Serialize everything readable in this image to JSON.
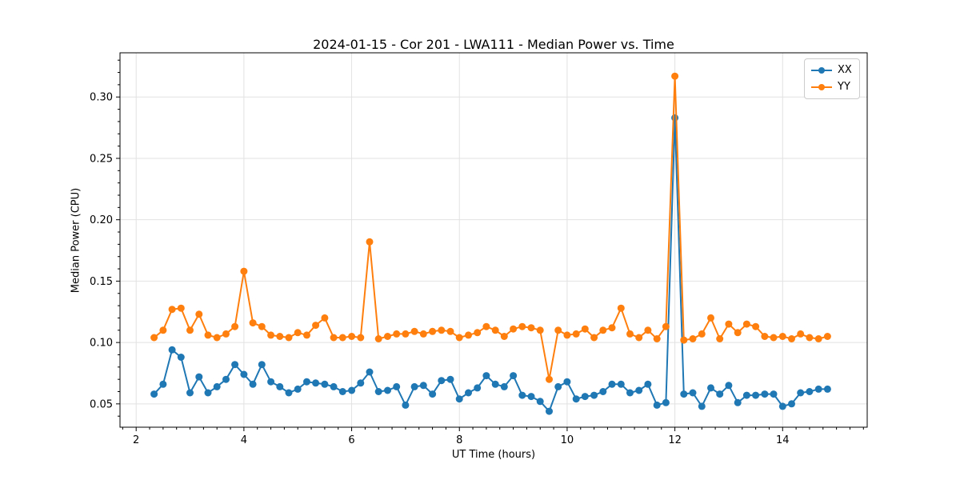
{
  "figure": {
    "background": "#ffffff",
    "text_color": "#000000",
    "spine_color": "#000000",
    "grid_color": "#e2e2e2",
    "legend_border_color": "#cccccc"
  },
  "chart_data": {
    "type": "line",
    "title": "2024-01-15 - Cor 201 - LWA111 - Median Power vs. Time",
    "xlabel": "UT Time (hours)",
    "ylabel": "Median Power (CPU)",
    "xlim": [
      1.7,
      15.57
    ],
    "ylim": [
      0.031,
      0.336
    ],
    "x_major_ticks": [
      2,
      4,
      6,
      8,
      10,
      12,
      14
    ],
    "x_minor_step": 0.25,
    "y_major_ticks": [
      0.05,
      0.1,
      0.15,
      0.2,
      0.25,
      0.3
    ],
    "y_minor_step": 0.01,
    "grid": "major-only",
    "legend_position": "upper right",
    "marker": "circle",
    "x": [
      2.333,
      2.5,
      2.667,
      2.833,
      3,
      3.167,
      3.333,
      3.5,
      3.667,
      3.833,
      4,
      4.167,
      4.333,
      4.5,
      4.667,
      4.833,
      5,
      5.167,
      5.333,
      5.5,
      5.667,
      5.833,
      6,
      6.167,
      6.333,
      6.5,
      6.667,
      6.833,
      7,
      7.167,
      7.333,
      7.5,
      7.667,
      7.833,
      8,
      8.167,
      8.333,
      8.5,
      8.667,
      8.833,
      9,
      9.167,
      9.333,
      9.5,
      9.667,
      9.833,
      10,
      10.167,
      10.333,
      10.5,
      10.667,
      10.833,
      11,
      11.167,
      11.333,
      11.5,
      11.667,
      11.833,
      12,
      12.167,
      12.333,
      12.5,
      12.667,
      12.833,
      13,
      13.167,
      13.333,
      13.5,
      13.667,
      13.833,
      14,
      14.167,
      14.333,
      14.5,
      14.667,
      14.833
    ],
    "series": [
      {
        "name": "XX",
        "color": "#1f77b4",
        "values": [
          0.058,
          0.066,
          0.094,
          0.088,
          0.059,
          0.072,
          0.059,
          0.064,
          0.07,
          0.082,
          0.074,
          0.066,
          0.082,
          0.068,
          0.064,
          0.059,
          0.062,
          0.068,
          0.067,
          0.066,
          0.064,
          0.06,
          0.061,
          0.067,
          0.076,
          0.06,
          0.061,
          0.064,
          0.049,
          0.064,
          0.065,
          0.058,
          0.069,
          0.07,
          0.054,
          0.059,
          0.063,
          0.073,
          0.066,
          0.064,
          0.073,
          0.057,
          0.056,
          0.052,
          0.044,
          0.064,
          0.068,
          0.054,
          0.056,
          0.057,
          0.06,
          0.066,
          0.066,
          0.059,
          0.061,
          0.066,
          0.049,
          0.051,
          0.283,
          0.058,
          0.059,
          0.048,
          0.063,
          0.058,
          0.065,
          0.051,
          0.057,
          0.057,
          0.058,
          0.058,
          0.048,
          0.05,
          0.059,
          0.06,
          0.062,
          0.062
        ]
      },
      {
        "name": "YY",
        "color": "#ff7f0e",
        "values": [
          0.104,
          0.11,
          0.127,
          0.128,
          0.11,
          0.123,
          0.106,
          0.104,
          0.107,
          0.113,
          0.158,
          0.116,
          0.113,
          0.106,
          0.105,
          0.104,
          0.108,
          0.106,
          0.114,
          0.12,
          0.104,
          0.104,
          0.105,
          0.104,
          0.182,
          0.103,
          0.105,
          0.107,
          0.107,
          0.109,
          0.107,
          0.109,
          0.11,
          0.109,
          0.104,
          0.106,
          0.108,
          0.113,
          0.11,
          0.105,
          0.111,
          0.113,
          0.112,
          0.11,
          0.07,
          0.11,
          0.106,
          0.107,
          0.111,
          0.104,
          0.11,
          0.112,
          0.128,
          0.107,
          0.104,
          0.11,
          0.103,
          0.113,
          0.317,
          0.102,
          0.103,
          0.107,
          0.12,
          0.103,
          0.115,
          0.108,
          0.115,
          0.113,
          0.105,
          0.104,
          0.105,
          0.103,
          0.107,
          0.104,
          0.103,
          0.105
        ]
      }
    ]
  }
}
